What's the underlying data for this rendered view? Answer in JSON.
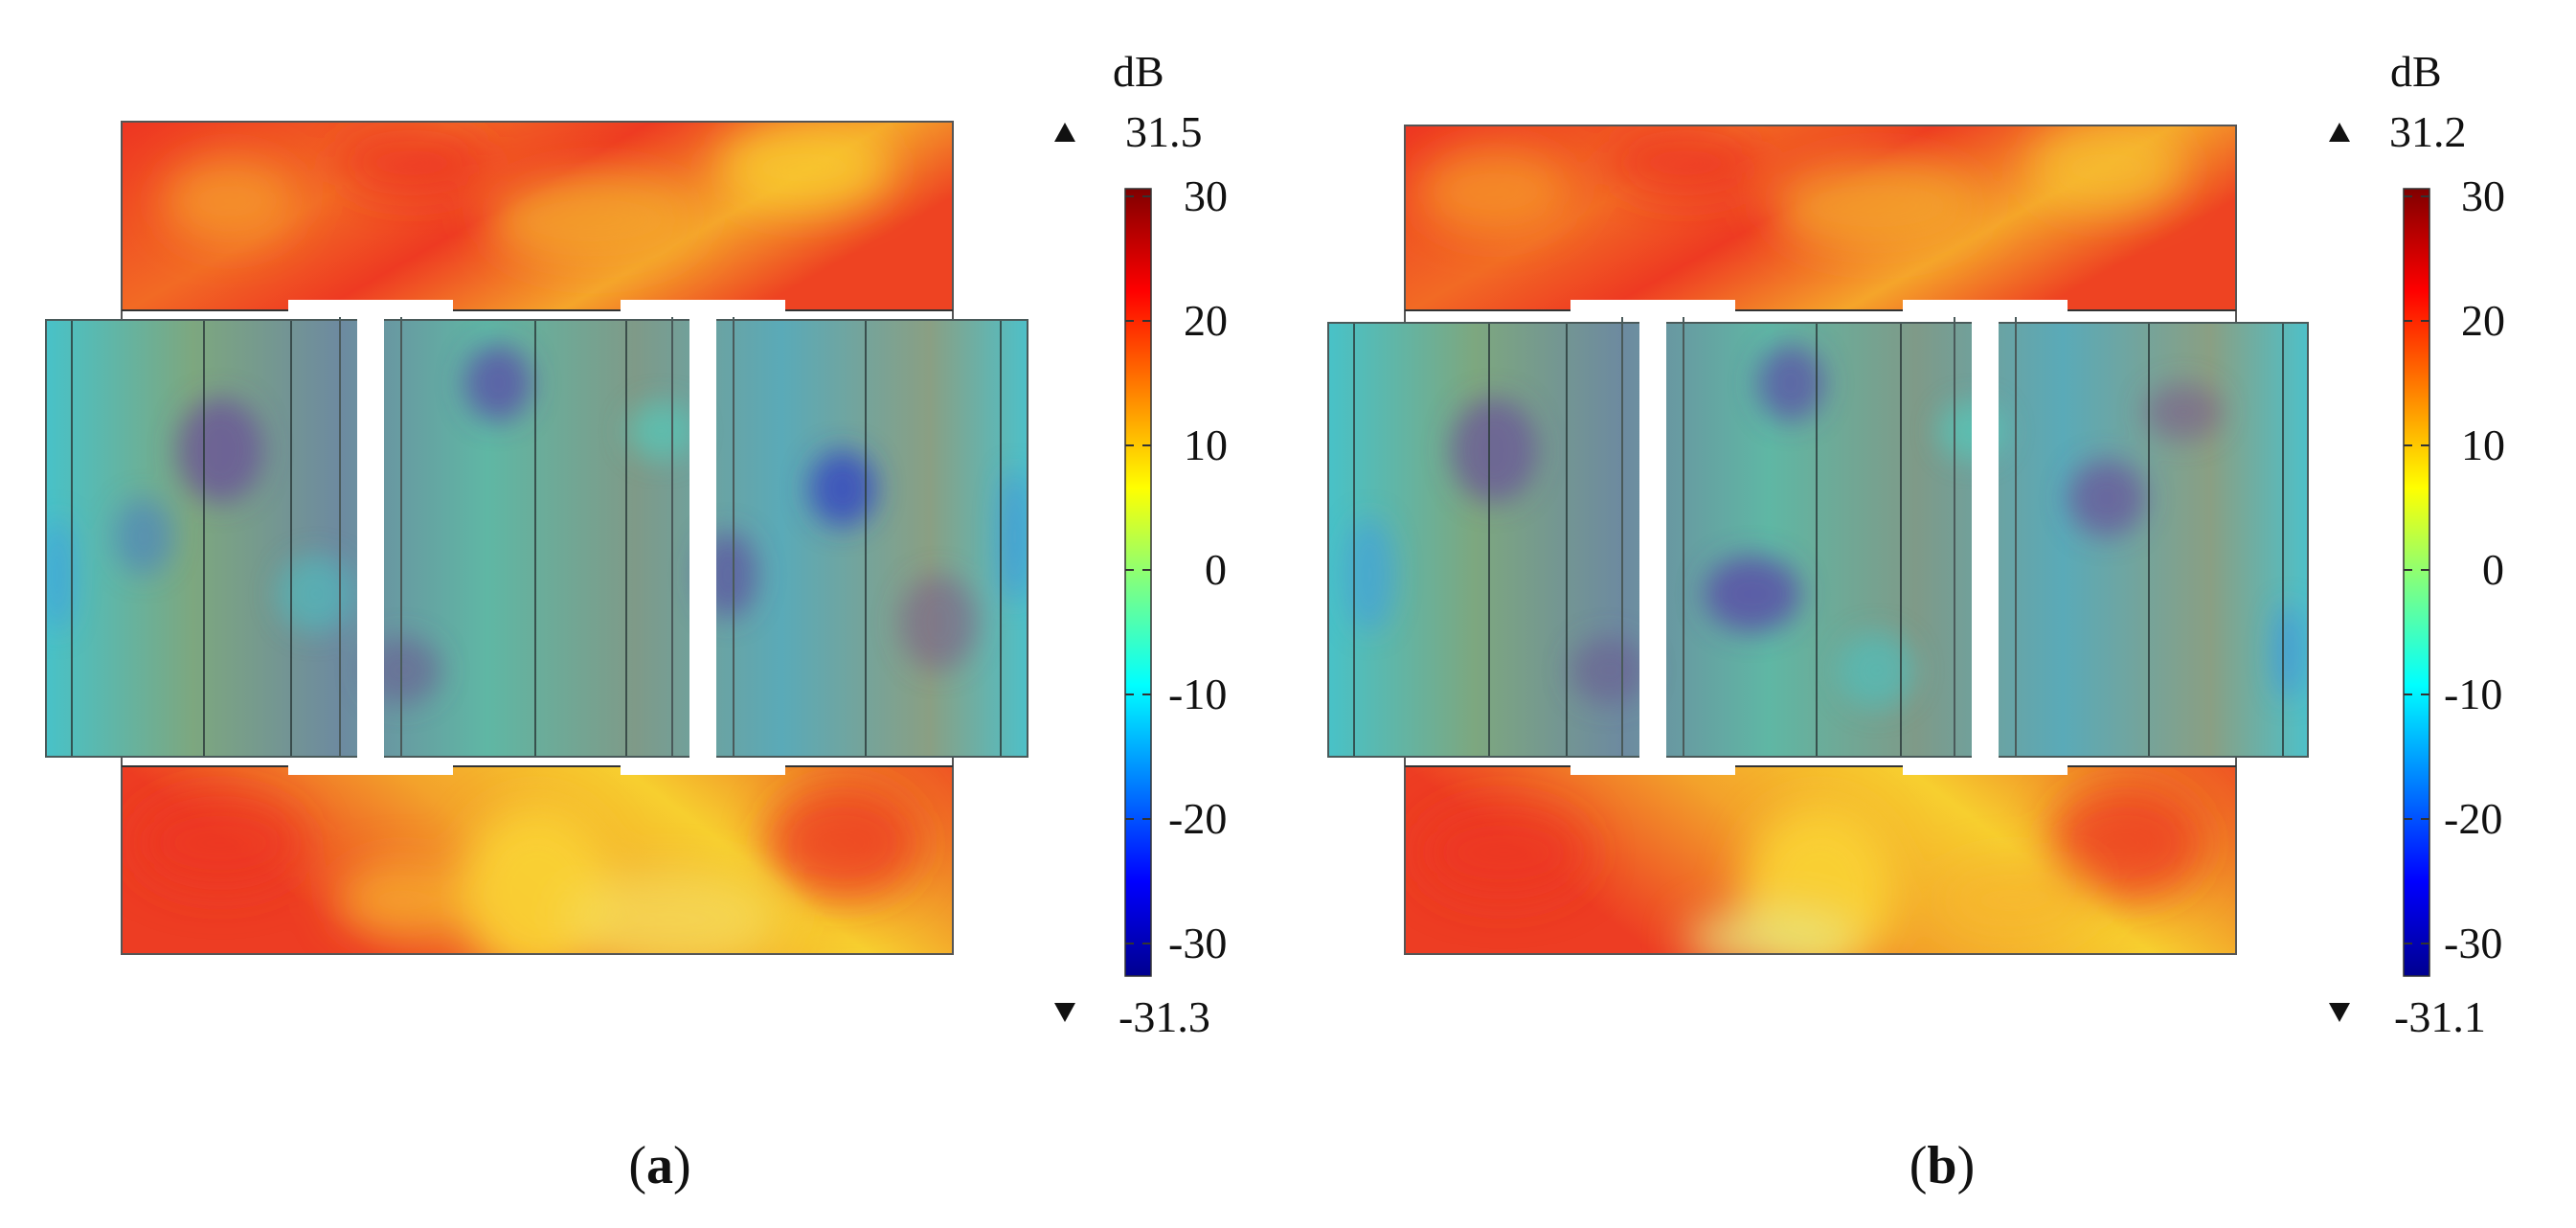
{
  "panels": [
    {
      "id": "a",
      "caption_label": "a",
      "colorbar": {
        "unit": "dB",
        "max": "31.5",
        "min": "-31.3",
        "ticks": [
          "30",
          "20",
          "10",
          "0",
          "-10",
          "-20",
          "-30"
        ]
      }
    },
    {
      "id": "b",
      "caption_label": "b",
      "colorbar": {
        "unit": "dB",
        "max": "31.2",
        "min": "-31.1",
        "ticks": [
          "30",
          "20",
          "10",
          "0",
          "-10",
          "-20",
          "-30"
        ]
      }
    }
  ]
}
